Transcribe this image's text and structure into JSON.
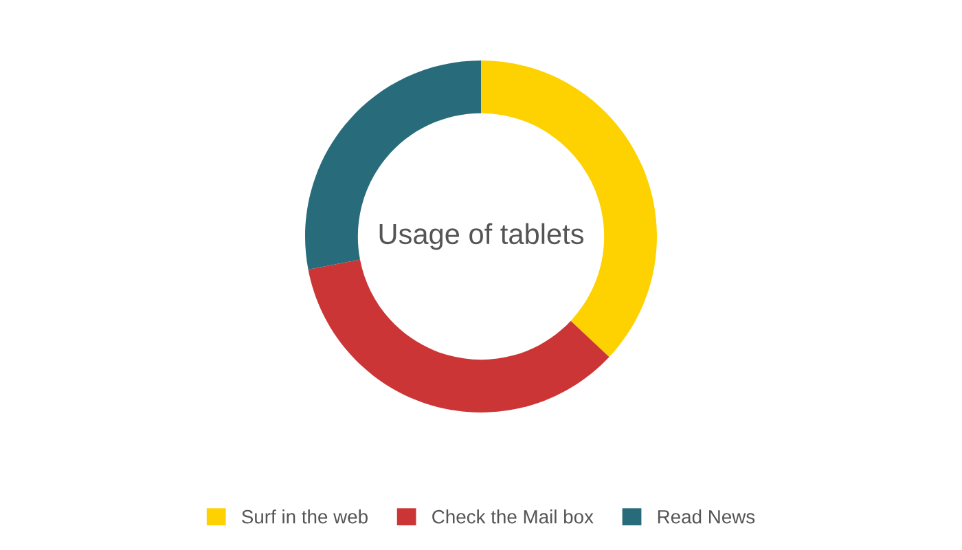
{
  "chart_data": {
    "type": "donut",
    "title": "Usage of tablets",
    "categories": [
      "Surf in the web",
      "Check the Mail box",
      "Read News"
    ],
    "values": [
      37,
      35,
      28
    ],
    "colors": [
      "#fdd200",
      "#cc3535",
      "#286c7b"
    ],
    "legend": "bottom"
  }
}
